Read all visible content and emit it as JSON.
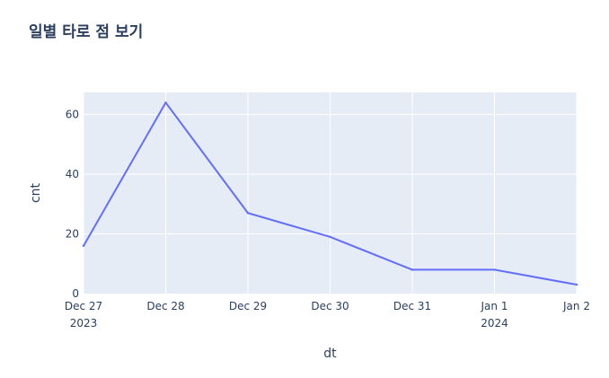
{
  "chart_data": {
    "type": "line",
    "title": "일별 타로 점 보기",
    "xlabel": "dt",
    "ylabel": "cnt",
    "x": [
      "2023-12-27",
      "2023-12-28",
      "2023-12-29",
      "2023-12-30",
      "2023-12-31",
      "2024-01-01",
      "2024-01-02"
    ],
    "x_tick_labels": [
      "Dec 27",
      "Dec 28",
      "Dec 29",
      "Dec 30",
      "Dec 31",
      "Jan 1",
      "Jan 2"
    ],
    "x_tick_sublabels": [
      "2023",
      "",
      "",
      "",
      "",
      "2024",
      ""
    ],
    "series": [
      {
        "values": [
          16,
          64,
          27,
          19,
          8,
          8,
          3
        ],
        "color": "#636efa"
      }
    ],
    "yticks": [
      0,
      20,
      40,
      60
    ],
    "ylim": [
      0,
      67.4
    ],
    "grid": true,
    "plot_background": "#e5ecf6",
    "grid_color": "#ffffff"
  }
}
